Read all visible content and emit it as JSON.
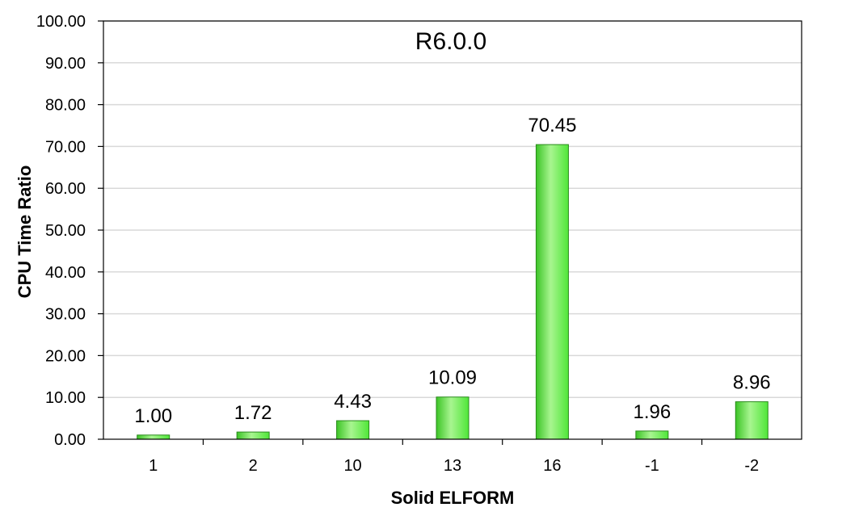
{
  "chart_data": {
    "type": "bar",
    "title": "R6.0.0",
    "xlabel": "Solid ELFORM",
    "ylabel": "CPU Time Ratio",
    "categories": [
      "1",
      "2",
      "10",
      "13",
      "16",
      "-1",
      "-2"
    ],
    "values": [
      1.0,
      1.72,
      4.43,
      10.09,
      70.45,
      1.96,
      8.96
    ],
    "data_labels": [
      "1.00",
      "1.72",
      "4.43",
      "10.09",
      "70.45",
      "1.96",
      "8.96"
    ],
    "ylim": [
      0,
      100
    ],
    "yticks": [
      0,
      10,
      20,
      30,
      40,
      50,
      60,
      70,
      80,
      90,
      100
    ],
    "ytick_labels": [
      "0.00",
      "10.00",
      "20.00",
      "30.00",
      "40.00",
      "50.00",
      "60.00",
      "70.00",
      "80.00",
      "90.00",
      "100.00"
    ],
    "grid": true,
    "legend": "none",
    "colors": {
      "bar_fill": "#4fe638",
      "bar_fill_light": "#a8f590",
      "bar_fill_dark": "#3cc426",
      "bar_edge": "#2a8a1c",
      "gridline": "#d9d9d9",
      "axis": "#000000"
    }
  }
}
